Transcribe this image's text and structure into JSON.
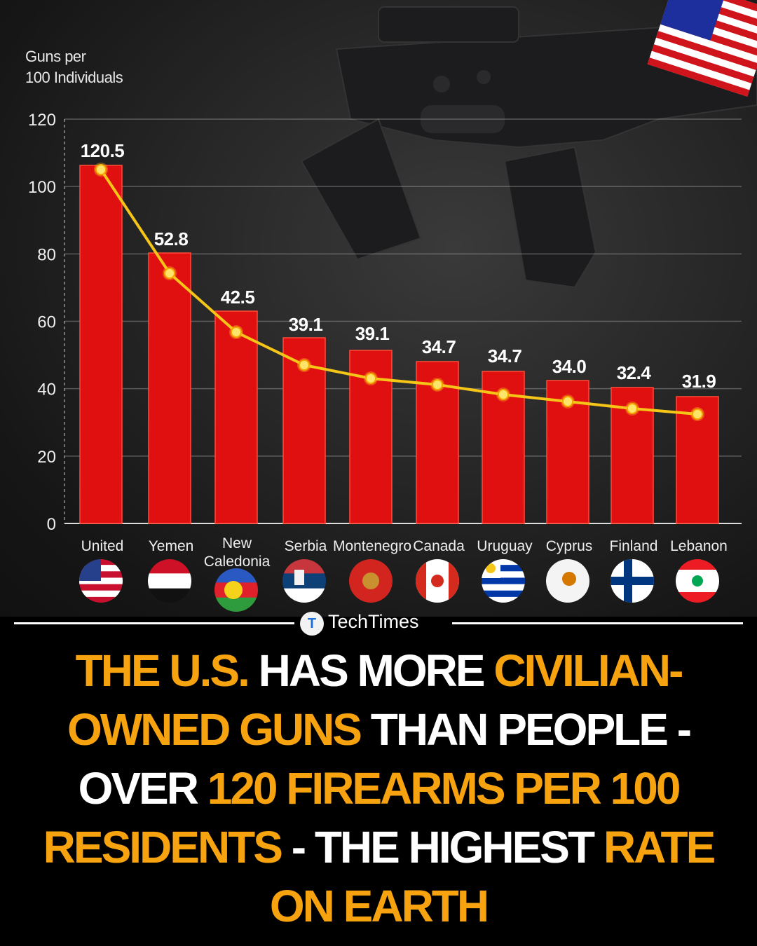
{
  "chart_data": {
    "type": "bar",
    "title": "",
    "ylabel": "Guns per 100 Individuals",
    "xlabel": "",
    "ylim": [
      0,
      120
    ],
    "yticks": [
      0,
      20,
      40,
      60,
      80,
      100,
      120
    ],
    "grid": true,
    "categories": [
      "United",
      "Yemen",
      "New Caledonia",
      "Serbia",
      "Montenegro",
      "Canada",
      "Uruguay",
      "Cyprus",
      "Finland",
      "Lebanon"
    ],
    "values": [
      120.5,
      52.8,
      42.5,
      39.1,
      39.1,
      34.7,
      34.7,
      34.0,
      32.4,
      31.9
    ],
    "data_labels": [
      "120.5",
      "52.8",
      "42.5",
      "39.1",
      "39.1",
      "34.7",
      "34.7",
      "34.0",
      "32.4",
      "31.9"
    ],
    "overlay": "yellow trend line with dot markers over bars",
    "bar_color": "#e01010",
    "line_color": "#f5c518"
  },
  "axis": {
    "ylabel_line1": "Guns per",
    "ylabel_line2": "100 Individuals",
    "ticks": [
      "0",
      "20",
      "40",
      "60",
      "80",
      "100",
      "120"
    ]
  },
  "flags": [
    "us-flag",
    "yemen-flag",
    "new-caledonia-flag",
    "serbia-flag",
    "montenegro-flag",
    "canada-flag",
    "uruguay-flag",
    "cyprus-flag",
    "finland-flag",
    "lebanon-flag"
  ],
  "brand": {
    "name": "TechTimes",
    "logo_letter": "T"
  },
  "headline": {
    "segments": [
      {
        "text": "THE U.S. ",
        "color": "orange"
      },
      {
        "text": "HAS MORE ",
        "color": "white"
      },
      {
        "text": "CIVILIAN-",
        "color": "orange"
      },
      {
        "text": "OWNED GUNS ",
        "color": "orange"
      },
      {
        "text": "THAN PEOPLE -",
        "color": "white"
      },
      {
        "text": "OVER ",
        "color": "white"
      },
      {
        "text": "120 FIREARMS PER 100",
        "color": "orange"
      },
      {
        "text": "RESIDENTS ",
        "color": "orange"
      },
      {
        "text": "- THE HIGHEST ",
        "color": "white"
      },
      {
        "text": "RATE",
        "color": "orange"
      },
      {
        "text": "ON EARTH",
        "color": "orange"
      }
    ]
  },
  "colors": {
    "orange": "#f7a310",
    "white": "#ffffff",
    "bar": "#e01010",
    "trend": "#f5c518"
  }
}
